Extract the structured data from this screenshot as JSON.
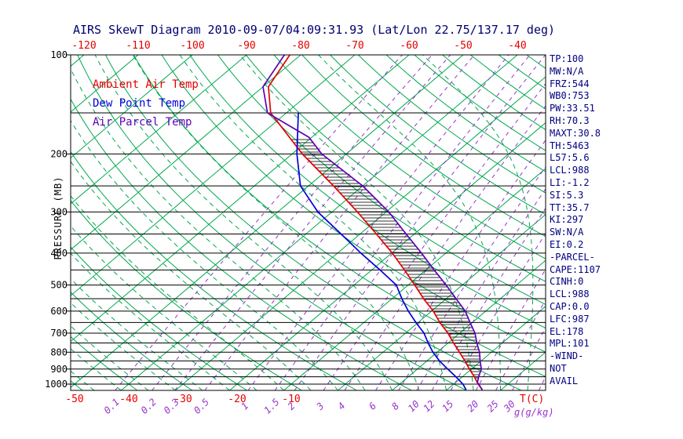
{
  "title": "AIRS SkewT Diagram 2010-09-07/04:09:31.93 (Lat/Lon 22.75/137.17 deg)",
  "legend": [
    {
      "label": "Ambient Air Temp",
      "color": "#e60000"
    },
    {
      "label": "Dew Point Temp",
      "color": "#0000dd"
    },
    {
      "label": "Air Parcel Temp",
      "color": "#5a00b8"
    }
  ],
  "stats_panel": {
    "lines": [
      "TP:100",
      "MW:N/A",
      "FRZ:544",
      "WB0:753",
      "PW:33.51",
      "RH:70.3",
      "MAXT:30.8",
      "TH:5463",
      "L57:5.6",
      "LCL:988",
      "LI:-1.2",
      "SI:5.3",
      "TT:35.7",
      "KI:297",
      "SW:N/A",
      "EI:0.2",
      "-PARCEL-",
      "CAPE:1107",
      "CINH:0",
      "LCL:988",
      "CAP:0.0",
      "LFC:987",
      "EL:178",
      "MPL:101",
      "-WIND-",
      "NOT",
      "AVAIL"
    ]
  },
  "chart_data": {
    "type": "line",
    "title": "AIRS SkewT Diagram 2010-09-07/04:09:31.93 (Lat/Lon 22.75/137.17 deg)",
    "ylabel": "PRESSURE (MB)",
    "xlabel": "T(C)",
    "x2label": "g(g/kg)",
    "layout": {
      "y_scale": "log-pressure",
      "skewed_isotherms": true,
      "legend_position": "inside-top-left",
      "grid": true
    },
    "axes": {
      "pressure_range": [
        100,
        1045
      ],
      "pressure_ticks": [
        100,
        200,
        300,
        400,
        500,
        600,
        700,
        800,
        900,
        1000
      ],
      "isobar_lines": [
        100,
        150,
        200,
        250,
        300,
        350,
        400,
        450,
        500,
        550,
        600,
        650,
        700,
        750,
        800,
        850,
        900,
        950,
        1000
      ],
      "top_temp_ticks": [
        -120,
        -110,
        -100,
        -90,
        -80,
        -70,
        -60,
        -50,
        -40
      ],
      "bottom_temp_ticks": [
        -50,
        -40,
        -30,
        -20,
        -10
      ],
      "isotherms": {
        "min": -130,
        "max": 40,
        "step": 10
      },
      "dry_adiabats": {
        "min": -60,
        "max": 190,
        "step": 10
      },
      "moist_adiabats": {
        "min": -60,
        "max": 45,
        "step": 5
      },
      "mixing_ratio_ticks": [
        0.1,
        0.2,
        0.3,
        0.5,
        1,
        1.5,
        2,
        3,
        4,
        6,
        8,
        10,
        12,
        15,
        20,
        25,
        30,
        40
      ],
      "mixing_ratio_labels": [
        0.1,
        0.2,
        0.3,
        0.5,
        1,
        1.5,
        2,
        3,
        4,
        6,
        8,
        10,
        12,
        15,
        20,
        25,
        30
      ],
      "colors": {
        "grid_green": "#00a84e",
        "mixing_purple": "#9933cc",
        "isobar_black": "#000000",
        "axis_red": "#e60000",
        "text_navy": "#000080"
      }
    },
    "series": [
      {
        "name": "ambient_air_temp",
        "color": "#e60000",
        "points": [
          [
            1040,
            26.5
          ],
          [
            1000,
            24.5
          ],
          [
            950,
            22.2
          ],
          [
            900,
            19.6
          ],
          [
            850,
            17.0
          ],
          [
            800,
            14.1
          ],
          [
            750,
            11.0
          ],
          [
            700,
            7.8
          ],
          [
            650,
            4.0
          ],
          [
            600,
            0.3
          ],
          [
            550,
            -4.2
          ],
          [
            500,
            -8.8
          ],
          [
            450,
            -14.0
          ],
          [
            400,
            -19.9
          ],
          [
            350,
            -27.0
          ],
          [
            300,
            -35.3
          ],
          [
            250,
            -45.4
          ],
          [
            200,
            -58.1
          ],
          [
            150,
            -72.9
          ],
          [
            125,
            -79.0
          ],
          [
            100,
            -82.0
          ]
        ]
      },
      {
        "name": "dew_point_temp",
        "color": "#0000dd",
        "points": [
          [
            1040,
            23.5
          ],
          [
            1000,
            21.7
          ],
          [
            950,
            18.8
          ],
          [
            900,
            15.6
          ],
          [
            850,
            12.3
          ],
          [
            800,
            9.2
          ],
          [
            750,
            6.3
          ],
          [
            700,
            3.4
          ],
          [
            650,
            -0.4
          ],
          [
            600,
            -4.3
          ],
          [
            550,
            -8.2
          ],
          [
            500,
            -12.2
          ],
          [
            450,
            -18.5
          ],
          [
            400,
            -25.7
          ],
          [
            350,
            -33.5
          ],
          [
            300,
            -42.6
          ],
          [
            250,
            -51.5
          ],
          [
            200,
            -59.1
          ],
          [
            150,
            -67.8
          ]
        ]
      },
      {
        "name": "air_parcel_temp",
        "color": "#5a00b8",
        "points": [
          [
            1040,
            26.5
          ],
          [
            988,
            24.0
          ],
          [
            950,
            23.0
          ],
          [
            900,
            21.8
          ],
          [
            850,
            19.8
          ],
          [
            800,
            17.8
          ],
          [
            750,
            15.3
          ],
          [
            700,
            12.8
          ],
          [
            650,
            9.6
          ],
          [
            600,
            6.2
          ],
          [
            550,
            1.8
          ],
          [
            500,
            -3.0
          ],
          [
            450,
            -8.5
          ],
          [
            400,
            -14.5
          ],
          [
            350,
            -21.5
          ],
          [
            300,
            -29.5
          ],
          [
            250,
            -40.0
          ],
          [
            200,
            -54.5
          ],
          [
            178,
            -60.5
          ],
          [
            150,
            -73.5
          ],
          [
            125,
            -80.0
          ],
          [
            100,
            -83.0
          ]
        ]
      }
    ],
    "cape_region": {
      "between": [
        "air_parcel_temp",
        "ambient_air_temp"
      ],
      "pressure_bottom": 988,
      "pressure_top": 178,
      "style": "horizontal-hatch",
      "cape": 1107
    }
  }
}
